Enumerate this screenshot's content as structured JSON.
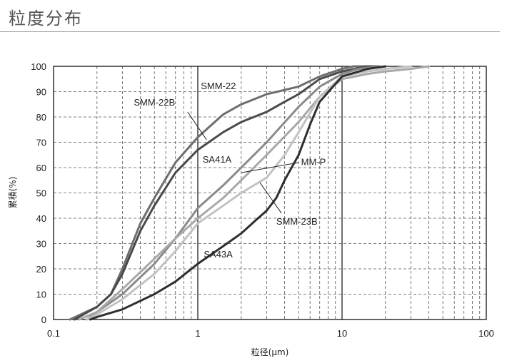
{
  "header": {
    "title": "粒度分布"
  },
  "chart_data": {
    "type": "line",
    "xscale": "log",
    "xlim": [
      0.1,
      100
    ],
    "ylim": [
      0,
      100
    ],
    "xticks": [
      0.1,
      1,
      10,
      100
    ],
    "xtick_labels": [
      "0.1",
      "1",
      "10",
      "100"
    ],
    "yticks": [
      0,
      10,
      20,
      30,
      40,
      50,
      60,
      70,
      80,
      90,
      100
    ],
    "ytick_labels": [
      "0",
      "10",
      "20",
      "30",
      "40",
      "50",
      "60",
      "70",
      "80",
      "90",
      "100"
    ],
    "xlabel": "粒径(μm)",
    "ylabel": "累積(%)",
    "grid": true,
    "series": [
      {
        "name": "SMM-22",
        "color": "#6e6e6e",
        "x": [
          0.13,
          0.2,
          0.25,
          0.3,
          0.4,
          0.5,
          0.7,
          1.0,
          1.5,
          2.0,
          3.0,
          5.0,
          7.0,
          10,
          12,
          15
        ],
        "y": [
          0,
          5,
          10,
          20,
          38,
          48,
          62,
          72,
          81,
          85,
          89,
          92,
          96,
          99,
          100,
          100
        ],
        "label_x": 1.05,
        "label_y": 91
      },
      {
        "name": "SMM-22B",
        "color": "#4a4a4a",
        "x": [
          0.14,
          0.2,
          0.25,
          0.3,
          0.4,
          0.5,
          0.7,
          1.0,
          1.5,
          2.0,
          3.0,
          4.0,
          5.0,
          7.0,
          10,
          15,
          18
        ],
        "y": [
          0,
          5,
          10,
          18,
          35,
          45,
          58,
          67,
          74,
          78,
          82,
          86,
          89,
          95,
          98,
          100,
          100
        ],
        "label_x": 0.36,
        "label_y": 84.5,
        "leader": [
          [
            0.85,
            82
          ],
          [
            1.15,
            71
          ]
        ]
      },
      {
        "name": "SA41A",
        "color": "#8a8a8a",
        "x": [
          0.17,
          0.2,
          0.3,
          0.5,
          0.7,
          1.0,
          1.5,
          2.0,
          3.0,
          5.0,
          7.0,
          10,
          13,
          18
        ],
        "y": [
          0,
          3,
          10,
          22,
          32,
          44,
          53,
          60,
          70,
          84,
          92,
          97,
          99,
          100
        ],
        "label_x": 1.08,
        "label_y": 62
      },
      {
        "name": "MM-P",
        "color": "#a8a8a8",
        "x": [
          0.15,
          0.2,
          0.3,
          0.5,
          0.7,
          1.0,
          1.5,
          2.0,
          3.0,
          5.0,
          7.0,
          10,
          15,
          20,
          30,
          40
        ],
        "y": [
          0,
          3,
          12,
          24,
          32,
          40,
          48,
          55,
          65,
          78,
          88,
          95,
          97,
          98,
          99,
          100
        ],
        "label_x": 5.2,
        "label_y": 61,
        "leader": [
          [
            5.0,
            62
          ],
          [
            2.0,
            58
          ]
        ]
      },
      {
        "name": "SMM-23B",
        "color": "#c2c2c2",
        "x": [
          0.17,
          0.2,
          0.3,
          0.5,
          0.7,
          1.0,
          1.5,
          2.0,
          3.0,
          4.0,
          5.0,
          7.0,
          10,
          15,
          20,
          30
        ],
        "y": [
          0,
          2,
          8,
          18,
          27,
          38,
          45,
          50,
          56,
          65,
          74,
          88,
          96,
          98,
          99,
          100
        ],
        "label_x": 3.5,
        "label_y": 37.5,
        "leader": [
          [
            3.8,
            42
          ],
          [
            2.7,
            54
          ]
        ]
      },
      {
        "name": "SA43A",
        "color": "#2e2e2e",
        "x": [
          0.18,
          0.2,
          0.3,
          0.5,
          0.7,
          1.0,
          1.5,
          2.0,
          2.5,
          3.0,
          3.5,
          4.0,
          5.0,
          6.0,
          7.0,
          10,
          15,
          20
        ],
        "y": [
          0,
          1,
          4,
          10,
          15,
          22,
          29,
          34,
          39,
          43,
          48,
          55,
          65,
          77,
          86,
          96,
          99,
          100
        ],
        "label_x": 1.1,
        "label_y": 24.5
      }
    ]
  }
}
